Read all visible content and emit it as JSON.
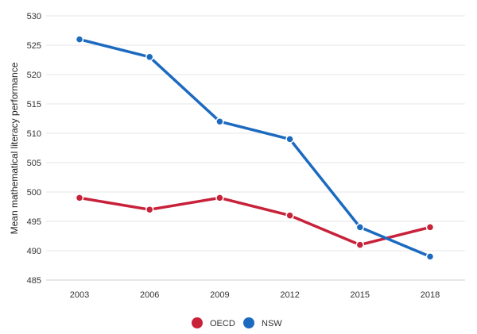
{
  "chart_data": {
    "type": "line",
    "title": "",
    "xlabel": "",
    "ylabel": "Mean mathematical literacy performance",
    "categories": [
      "2003",
      "2006",
      "2009",
      "2012",
      "2015",
      "2018"
    ],
    "ylim": [
      485,
      530
    ],
    "yticks": [
      485,
      490,
      495,
      500,
      505,
      510,
      515,
      520,
      525,
      530
    ],
    "grid": true,
    "legend_position": "bottom-center",
    "series": [
      {
        "name": "OECD",
        "color": "#c8213a",
        "values": [
          499,
          497,
          499,
          496,
          491,
          494
        ]
      },
      {
        "name": "NSW",
        "color": "#1c6ac0",
        "values": [
          526,
          523,
          512,
          509,
          494,
          489
        ]
      }
    ]
  }
}
